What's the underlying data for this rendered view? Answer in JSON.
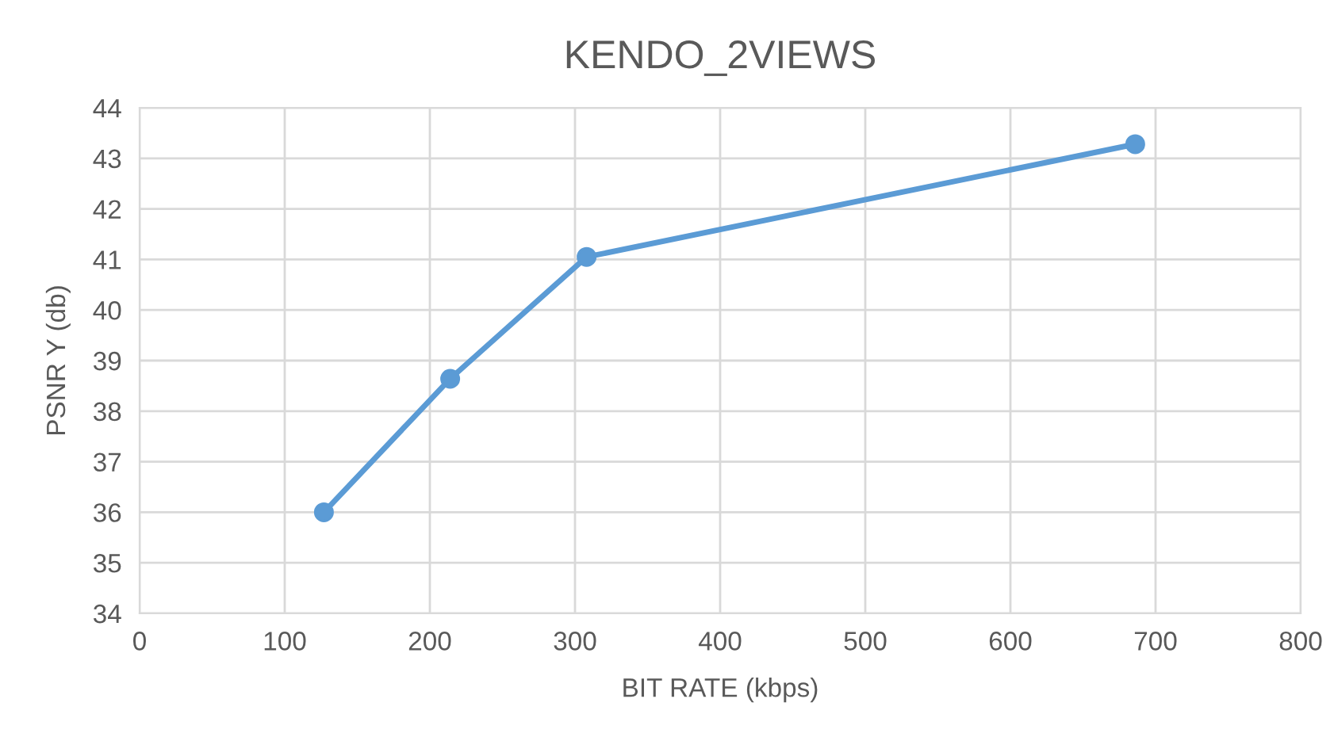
{
  "chart_data": {
    "type": "line",
    "title": "KENDO_2VIEWS",
    "xlabel": "BIT RATE (kbps)",
    "ylabel": "PSNR Y (db)",
    "series": [
      {
        "color": "#5b9bd5",
        "x": [
          127,
          214,
          308,
          686
        ],
        "values": [
          36.0,
          38.64,
          41.05,
          43.28
        ]
      }
    ],
    "xlim": [
      0,
      800
    ],
    "xticks": [
      0,
      100,
      200,
      300,
      400,
      500,
      600,
      700,
      800
    ],
    "ylim": [
      34,
      44
    ],
    "yticks": [
      34,
      35,
      36,
      37,
      38,
      39,
      40,
      41,
      42,
      43,
      44
    ],
    "grid": true,
    "marker": "circle",
    "line_style": "solid"
  }
}
